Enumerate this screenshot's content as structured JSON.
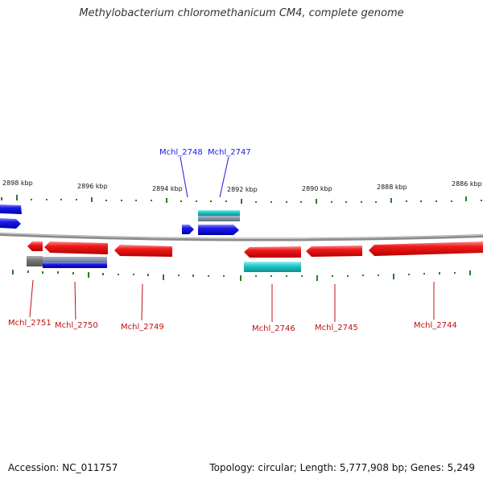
{
  "title": "Methylobacterium chloromethanicum CM4, complete genome",
  "footer": {
    "accession": "Accession: NC_011757",
    "summary": "Topology: circular; Length: 5,777,908 bp; Genes: 5,249"
  },
  "colors": {
    "forward_gene": "#1a1ae0",
    "reverse_gene": "#e01010",
    "forward_label": "#1a1ae0",
    "reverse_label": "#c01010",
    "cds_cyan": "#20c8c8",
    "pseudo_gray": "#777777",
    "backbone": "#888888",
    "tick": "#2a7a2a"
  },
  "scale_labels": [
    "2898 kbp",
    "2896 kbp",
    "2894 kbp",
    "2892 kbp",
    "2890 kbp",
    "2888 kbp",
    "2886 kbp"
  ],
  "forward_genes": [
    "Mchl_2748",
    "Mchl_2747"
  ],
  "reverse_genes": [
    "Mchl_2751",
    "Mchl_2750",
    "Mchl_2749",
    "Mchl_2746",
    "Mchl_2745",
    "Mchl_2744"
  ]
}
